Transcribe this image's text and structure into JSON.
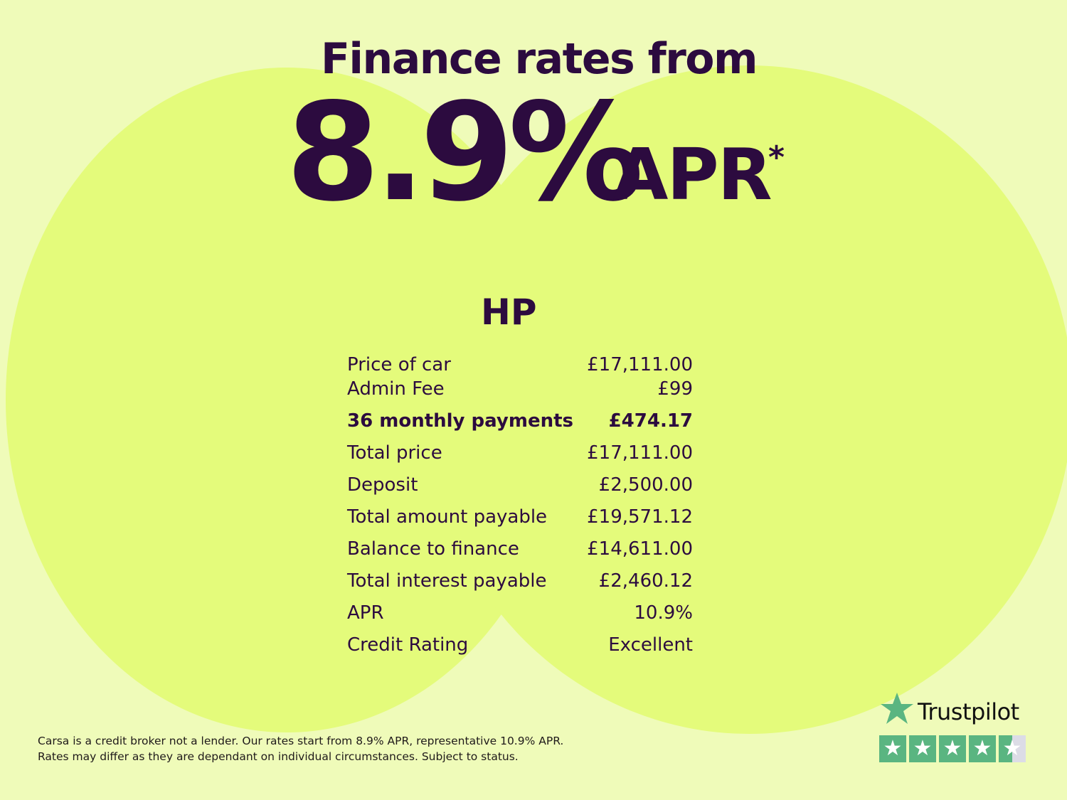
{
  "headline": {
    "title": "Finance rates from",
    "rate": "8.9%",
    "apr": "APR",
    "asterisk": "*"
  },
  "plan": {
    "name": "HP",
    "rows": [
      {
        "label": "Price of car",
        "value": "£17,111.00"
      },
      {
        "label": "Admin Fee",
        "value": "£99"
      },
      {
        "label": "36 monthly payments",
        "value": "£474.17",
        "bold": true
      },
      {
        "label": "Total price",
        "value": "£17,111.00"
      },
      {
        "label": "Deposit",
        "value": "£2,500.00"
      },
      {
        "label": "Total amount payable",
        "value": "£19,571.12"
      },
      {
        "label": "Balance to finance",
        "value": "£14,611.00"
      },
      {
        "label": "Total interest payable",
        "value": "£2,460.12"
      },
      {
        "label": "APR",
        "value": "10.9%"
      },
      {
        "label": "Credit Rating",
        "value": "Excellent"
      }
    ]
  },
  "footer": {
    "line1": "Carsa is a credit broker not a lender. Our rates start from 8.9% APR, representative 10.9% APR.",
    "line2": "Rates may differ as they are dependant on individual circumstances. Subject to status."
  },
  "trustpilot": {
    "name": "Trustpilot",
    "rating": 4.5,
    "star_color": "#5ab581"
  },
  "colors": {
    "background": "#effbb9",
    "blob": "#e4fb7b",
    "text": "#2c0b3f"
  }
}
